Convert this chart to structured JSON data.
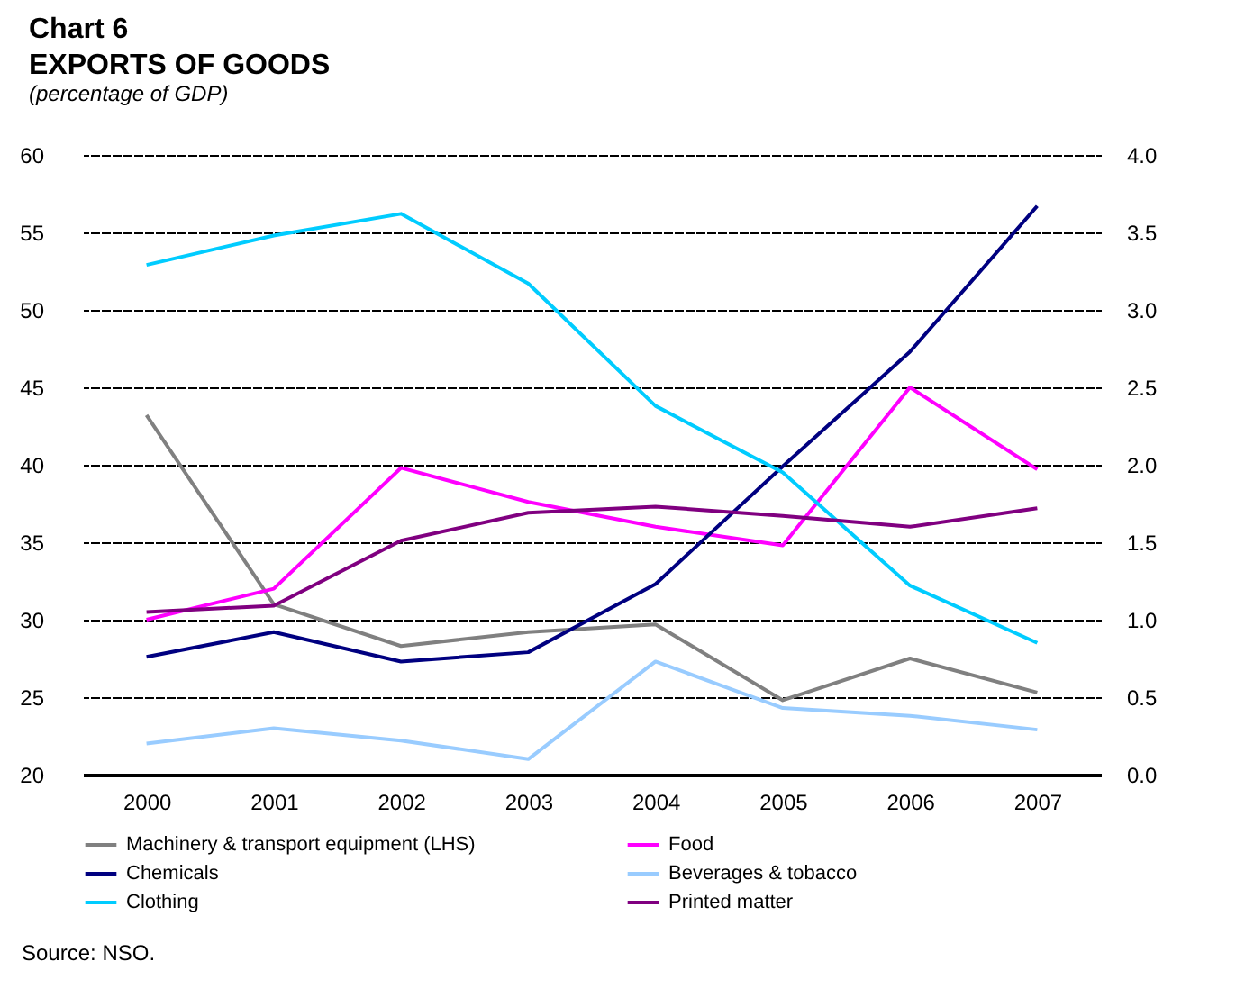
{
  "chart_data": {
    "type": "line",
    "title": "Chart 6",
    "subtitle": "EXPORTS OF GOODS",
    "annotations": [
      "(percentage of GDP)",
      "Source: NSO."
    ],
    "categories": [
      "2000",
      "2001",
      "2002",
      "2003",
      "2004",
      "2005",
      "2006",
      "2007"
    ],
    "series": [
      {
        "name": "Machinery & transport equipment (LHS)",
        "color": "#808080",
        "values": [
          43.2,
          31.0,
          28.3,
          29.2,
          29.7,
          24.8,
          27.5,
          25.3
        ]
      },
      {
        "name": "Food",
        "color": "#ff00ff",
        "axis": "y2",
        "values": [
          1.0,
          1.2,
          1.98,
          1.76,
          1.6,
          1.48,
          2.5,
          1.97
        ]
      },
      {
        "name": "Chemicals",
        "color": "#000080",
        "axis": "y2",
        "values": [
          0.76,
          0.92,
          0.73,
          0.79,
          1.23,
          1.99,
          2.73,
          3.67
        ]
      },
      {
        "name": "Beverages & tobacco",
        "color": "#99ccff",
        "axis": "y2",
        "values": [
          0.2,
          0.3,
          0.22,
          0.1,
          0.73,
          0.43,
          0.38,
          0.29
        ]
      },
      {
        "name": "Clothing",
        "color": "#00ccff",
        "axis": "y2",
        "values": [
          3.29,
          3.48,
          3.62,
          3.17,
          2.38,
          1.95,
          1.22,
          0.85
        ]
      },
      {
        "name": "Printed matter",
        "color": "#800080",
        "axis": "y2",
        "values": [
          1.05,
          1.09,
          1.51,
          1.69,
          1.73,
          1.67,
          1.6,
          1.72
        ]
      }
    ],
    "ylim": [
      20,
      60
    ],
    "yticks": [
      20,
      25,
      30,
      35,
      40,
      45,
      50,
      55,
      60
    ],
    "y2lim": [
      0,
      4
    ],
    "y2ticks": [
      {
        "value": 0,
        "label": "0.0"
      },
      {
        "value": 0.5,
        "label": "0.5"
      },
      {
        "value": 1,
        "label": "1.0"
      },
      {
        "value": 1.5,
        "label": "1.5"
      },
      {
        "value": 2,
        "label": "2.0"
      },
      {
        "value": 2.5,
        "label": "2.5"
      },
      {
        "value": 3,
        "label": "3.0"
      },
      {
        "value": 3.5,
        "label": "3.5"
      },
      {
        "value": 4,
        "label": "4.0"
      }
    ],
    "grid": "y",
    "legend": "bottom"
  }
}
